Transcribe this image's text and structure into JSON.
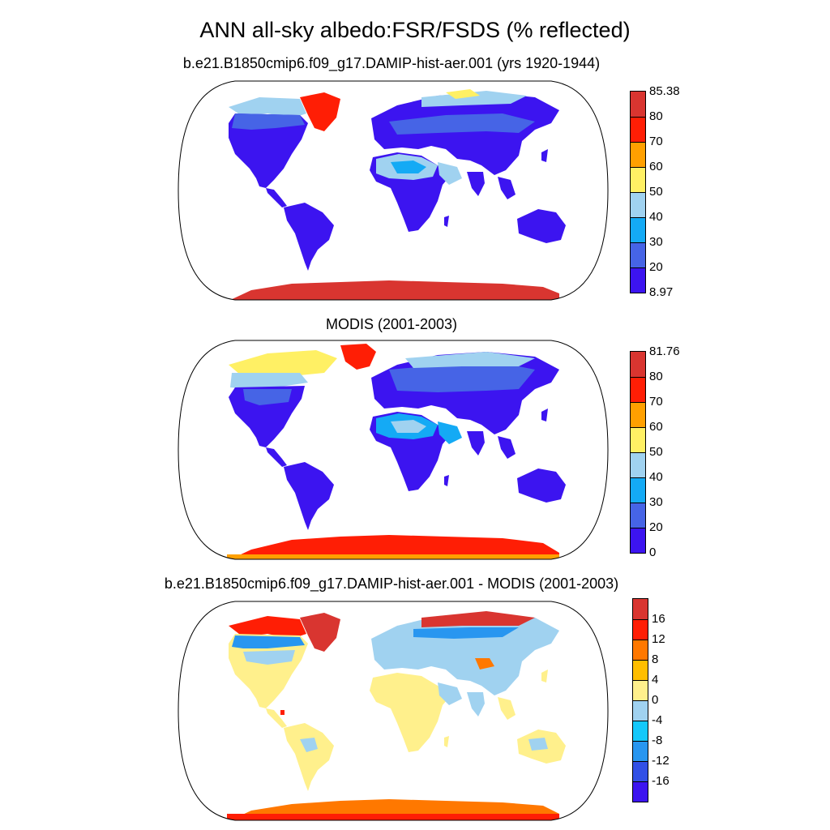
{
  "title": "ANN all-sky albedo:FSR/FSDS (% reflected)",
  "panels": [
    {
      "id": "model",
      "subtitle": "b.e21.B1850cmip6.f09_g17.DAMIP-hist-aer.001 (yrs 1920-1944)",
      "colorbar": {
        "labels": [
          "85.38",
          "80",
          "70",
          "60",
          "50",
          "40",
          "30",
          "20",
          "8.97"
        ],
        "colors": [
          "#d93530",
          "#ff1e05",
          "#ffa000",
          "#fff064",
          "#a0d2f0",
          "#14aaf5",
          "#4664e6",
          "#3c14f0"
        ]
      }
    },
    {
      "id": "obs",
      "subtitle": "MODIS (2001-2003)",
      "colorbar": {
        "labels": [
          "81.76",
          "80",
          "70",
          "60",
          "50",
          "40",
          "30",
          "20",
          "0"
        ],
        "colors": [
          "#d93530",
          "#ff1e05",
          "#ffa000",
          "#fff064",
          "#a0d2f0",
          "#14aaf5",
          "#4664e6",
          "#3c14f0"
        ]
      }
    },
    {
      "id": "diff",
      "subtitle": "b.e21.B1850cmip6.f09_g17.DAMIP-hist-aer.001 - MODIS (2001-2003)",
      "colorbar": {
        "labels": [
          "16",
          "12",
          "8",
          "4",
          "0",
          "-4",
          "-8",
          "-12",
          "-16"
        ],
        "colors": [
          "#d93530",
          "#ff1e05",
          "#ff7800",
          "#ffbe00",
          "#fff08c",
          "#a0d2f0",
          "#14c8fa",
          "#2896f0",
          "#3250e6",
          "#3c14f0"
        ]
      }
    }
  ]
}
